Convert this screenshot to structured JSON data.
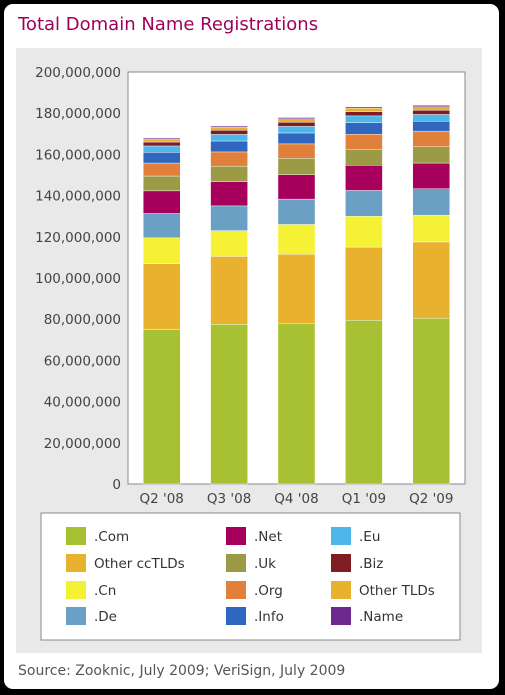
{
  "chart_title": "Total Domain Name Registrations",
  "source": "Source: Zooknic, July 2009; VeriSign, July 2009",
  "chart_data": {
    "type": "bar",
    "stacked": true,
    "title": "Total Domain Name Registrations",
    "xlabel": "",
    "ylabel": "",
    "ylim": [
      0,
      200000000
    ],
    "yticks": [
      "0",
      "20,000,000",
      "40,000,000",
      "60,000,000",
      "80,000,000",
      "100,000,000",
      "120,000,000",
      "140,000,000",
      "160,000,000",
      "180,000,000",
      "200,000,000"
    ],
    "grid": false,
    "legend_position": "bottom",
    "categories": [
      "Q2 '08",
      "Q3 '08",
      "Q4 '08",
      "Q1 '09",
      "Q2 '09"
    ],
    "series": [
      {
        "name": ".Com",
        "color": "#a8c132",
        "values": [
          75000000,
          77500000,
          78000000,
          79500000,
          80500000
        ]
      },
      {
        "name": "Other ccTLDs",
        "color": "#e8b12e",
        "values": [
          32000000,
          33000000,
          33500000,
          35500000,
          37000000
        ]
      },
      {
        "name": ".Cn",
        "color": "#f5f235",
        "values": [
          12500000,
          12500000,
          14500000,
          15000000,
          13000000
        ]
      },
      {
        "name": ".De",
        "color": "#6aa0c4",
        "values": [
          11800000,
          12000000,
          12300000,
          12500000,
          12800000
        ]
      },
      {
        "name": ".Net",
        "color": "#a6005c",
        "values": [
          11000000,
          11800000,
          11800000,
          12200000,
          12500000
        ]
      },
      {
        "name": ".Uk",
        "color": "#9c9a45",
        "values": [
          7200000,
          7500000,
          8000000,
          7800000,
          7900000
        ]
      },
      {
        "name": ".Org",
        "color": "#e0803a",
        "values": [
          6300000,
          6900000,
          7000000,
          7300000,
          7600000
        ]
      },
      {
        "name": ".Info",
        "color": "#2f67c0",
        "values": [
          5200000,
          5300000,
          5300000,
          5600000,
          4800000
        ]
      },
      {
        "name": ".Eu",
        "color": "#4fb6ea",
        "values": [
          3100000,
          3200000,
          3200000,
          3300000,
          3300000
        ]
      },
      {
        "name": ".Biz",
        "color": "#7f1d22",
        "values": [
          1900000,
          2000000,
          2000000,
          2000000,
          2000000
        ]
      },
      {
        "name": "Other TLDs",
        "color": "#e8b12e",
        "values": [
          1500000,
          1600000,
          1700000,
          1700000,
          1700000
        ]
      },
      {
        "name": ".Name",
        "color": "#6d2a8c",
        "values": [
          500000,
          500000,
          600000,
          600000,
          700000
        ]
      }
    ]
  }
}
